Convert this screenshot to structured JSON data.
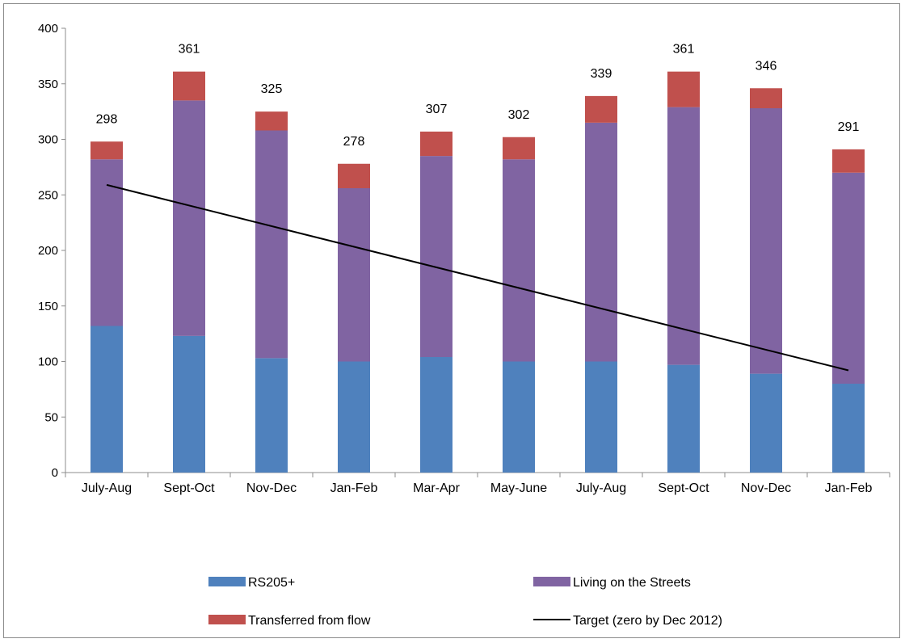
{
  "chart_data": {
    "type": "bar",
    "stacked": true,
    "categories": [
      "July-Aug",
      "Sept-Oct",
      "Nov-Dec",
      "Jan-Feb",
      "Mar-Apr",
      "May-June",
      "July-Aug",
      "Sept-Oct",
      "Nov-Dec",
      "Jan-Feb"
    ],
    "series": [
      {
        "name": "RS205+",
        "color": "#4f81bd",
        "values": [
          132,
          123,
          103,
          100,
          104,
          100,
          100,
          97,
          89,
          80
        ]
      },
      {
        "name": "Living on the Streets",
        "color": "#8064a2",
        "values": [
          150,
          212,
          205,
          156,
          181,
          182,
          215,
          232,
          239,
          190
        ]
      },
      {
        "name": "Transferred from flow",
        "color": "#c0504d",
        "values": [
          16,
          26,
          17,
          22,
          22,
          20,
          24,
          32,
          18,
          21
        ]
      }
    ],
    "totals": [
      298,
      361,
      325,
      278,
      307,
      302,
      339,
      361,
      346,
      291
    ],
    "target": {
      "name": "Target (zero by Dec 2012)",
      "color": "#000000",
      "start": {
        "category_index": 0,
        "value": 259
      },
      "end": {
        "category_index": 9,
        "value": 92
      }
    },
    "ylim": [
      0,
      400
    ],
    "yticks": [
      0,
      50,
      100,
      150,
      200,
      250,
      300,
      350,
      400
    ],
    "title": "",
    "xlabel": "",
    "ylabel": "",
    "grid": false,
    "legend_position": "bottom"
  }
}
